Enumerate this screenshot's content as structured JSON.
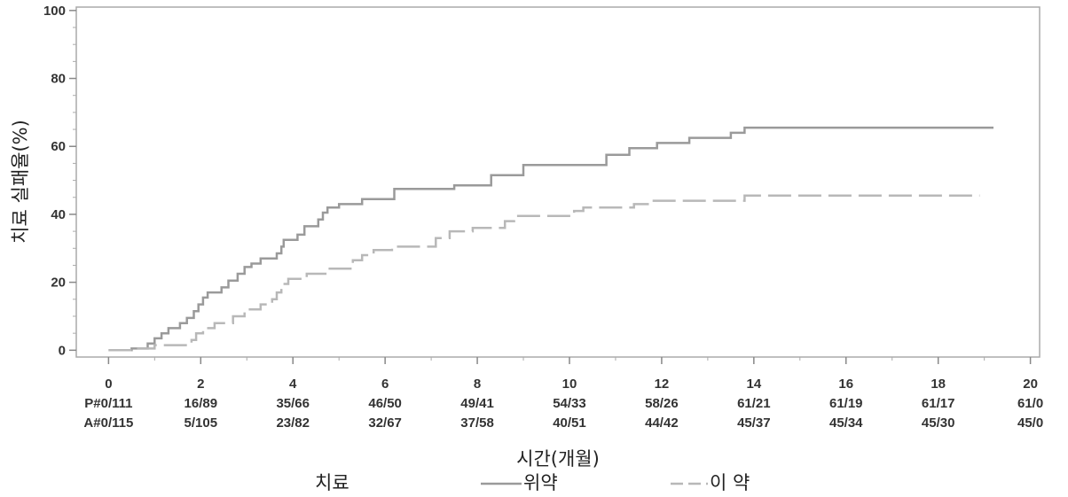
{
  "chart_data": {
    "type": "line",
    "title": "",
    "xlabel": "시간(개월)",
    "ylabel": "치료 실패율(%)",
    "xlim": [
      -0.7,
      20.2
    ],
    "ylim": [
      -2,
      101
    ],
    "xticks": [
      "0",
      "2",
      "4",
      "6",
      "8",
      "10",
      "12",
      "14",
      "16",
      "18",
      "20"
    ],
    "yticks": [
      "0",
      "20",
      "40",
      "60",
      "80",
      "100"
    ],
    "grid": false,
    "legend": {
      "title": "치료",
      "position": "bottom",
      "entries": [
        "위약",
        "이 약"
      ]
    },
    "risk_table": {
      "rows": [
        {
          "prefix": "P#",
          "values": [
            "0/111",
            "16/89",
            "35/66",
            "46/50",
            "49/41",
            "54/33",
            "58/26",
            "61/21",
            "61/19",
            "61/17",
            "61/0"
          ]
        },
        {
          "prefix": "A#",
          "values": [
            "0/115",
            "5/105",
            "23/82",
            "32/67",
            "37/58",
            "40/51",
            "44/42",
            "45/37",
            "45/34",
            "45/30",
            "45/0"
          ]
        }
      ]
    },
    "series": [
      {
        "name": "위약",
        "color": "#9a9a9a",
        "style": "solid",
        "step_points": [
          [
            0,
            0
          ],
          [
            0.5,
            0.5
          ],
          [
            0.85,
            2
          ],
          [
            1.0,
            3.5
          ],
          [
            1.15,
            5
          ],
          [
            1.3,
            6.5
          ],
          [
            1.55,
            8
          ],
          [
            1.7,
            9.5
          ],
          [
            1.85,
            11.5
          ],
          [
            1.95,
            13.5
          ],
          [
            2.05,
            15.5
          ],
          [
            2.15,
            17
          ],
          [
            2.45,
            18.5
          ],
          [
            2.6,
            20.5
          ],
          [
            2.8,
            22.5
          ],
          [
            2.95,
            24.5
          ],
          [
            3.1,
            25.5
          ],
          [
            3.3,
            27
          ],
          [
            3.65,
            28.5
          ],
          [
            3.75,
            30.5
          ],
          [
            3.8,
            32.5
          ],
          [
            4.1,
            34
          ],
          [
            4.25,
            36.5
          ],
          [
            4.55,
            38.5
          ],
          [
            4.65,
            40.5
          ],
          [
            4.75,
            42
          ],
          [
            5.0,
            43
          ],
          [
            5.5,
            44.5
          ],
          [
            6.2,
            47.5
          ],
          [
            7.5,
            48.5
          ],
          [
            8.3,
            51.5
          ],
          [
            9.0,
            54.5
          ],
          [
            10.8,
            57.5
          ],
          [
            11.3,
            59.5
          ],
          [
            11.9,
            61
          ],
          [
            12.6,
            62.5
          ],
          [
            13.5,
            64
          ],
          [
            13.8,
            65.5
          ],
          [
            19.2,
            65.5
          ]
        ]
      },
      {
        "name": "이 약",
        "color": "#b8b8b8",
        "style": "dashed",
        "step_points": [
          [
            0,
            0
          ],
          [
            0.6,
            0.5
          ],
          [
            1.0,
            1.5
          ],
          [
            1.8,
            3
          ],
          [
            1.9,
            5
          ],
          [
            2.05,
            6.5
          ],
          [
            2.3,
            8
          ],
          [
            2.7,
            10
          ],
          [
            2.95,
            12
          ],
          [
            3.3,
            13.5
          ],
          [
            3.55,
            15
          ],
          [
            3.65,
            17
          ],
          [
            3.75,
            19.5
          ],
          [
            3.9,
            21
          ],
          [
            4.3,
            22.5
          ],
          [
            4.75,
            24
          ],
          [
            5.3,
            26.5
          ],
          [
            5.5,
            28
          ],
          [
            5.75,
            29.5
          ],
          [
            6.15,
            30.5
          ],
          [
            7.1,
            33
          ],
          [
            7.4,
            35
          ],
          [
            7.9,
            36
          ],
          [
            8.6,
            38
          ],
          [
            8.8,
            39.5
          ],
          [
            10.1,
            41
          ],
          [
            10.3,
            42
          ],
          [
            11.4,
            43
          ],
          [
            11.8,
            44
          ],
          [
            13.8,
            45.5
          ],
          [
            18.9,
            45.5
          ]
        ]
      }
    ]
  }
}
